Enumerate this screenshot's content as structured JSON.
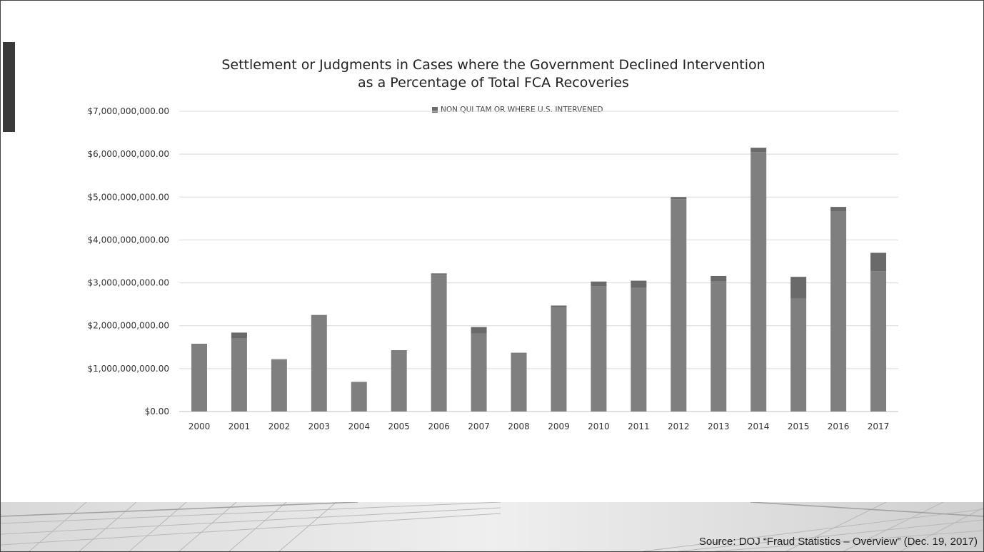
{
  "slide": {
    "title_line1": "Settlement or Judgments in Cases where the Government Declined Intervention",
    "title_line2": "as a Percentage of Total FCA Recoveries",
    "legend_label": "NON QUI TAM OR WHERE U.S. INTERVENED",
    "source": "Source: DOJ “Fraud Statistics – Overview” (Dec. 19, 2017)"
  },
  "colors": {
    "series_main": "#7f7f7f",
    "series_top": "#6a6a6a",
    "grid": "#d9d9d9",
    "left_tab": "#3a3a3a"
  },
  "chart_data": {
    "type": "bar",
    "stacked": true,
    "title": "Settlement or Judgments in Cases where the Government Declined Intervention as a Percentage of Total FCA Recoveries",
    "categories": [
      "2000",
      "2001",
      "2002",
      "2003",
      "2004",
      "2005",
      "2006",
      "2007",
      "2008",
      "2009",
      "2010",
      "2011",
      "2012",
      "2013",
      "2014",
      "2015",
      "2016",
      "2017"
    ],
    "series": [
      {
        "name": "NON QUI TAM OR WHERE U.S. INTERVENED",
        "values": [
          1570000000,
          1700000000,
          1210000000,
          2230000000,
          670000000,
          1420000000,
          3190000000,
          1820000000,
          1350000000,
          2430000000,
          2920000000,
          2880000000,
          4950000000,
          3030000000,
          6050000000,
          2630000000,
          4660000000,
          3270000000
        ]
      },
      {
        "values": [
          10000000,
          140000000,
          10000000,
          20000000,
          20000000,
          10000000,
          30000000,
          150000000,
          20000000,
          40000000,
          110000000,
          170000000,
          50000000,
          130000000,
          100000000,
          510000000,
          110000000,
          430000000
        ]
      }
    ],
    "yticks": [
      "$0.00",
      "$1,000,000,000.00",
      "$2,000,000,000.00",
      "$3,000,000,000.00",
      "$4,000,000,000.00",
      "$5,000,000,000.00",
      "$6,000,000,000.00",
      "$7,000,000,000.00"
    ],
    "ylim": [
      0,
      7000000000
    ],
    "xlabel": "",
    "ylabel": "",
    "grid": true,
    "legend_position": "top"
  }
}
